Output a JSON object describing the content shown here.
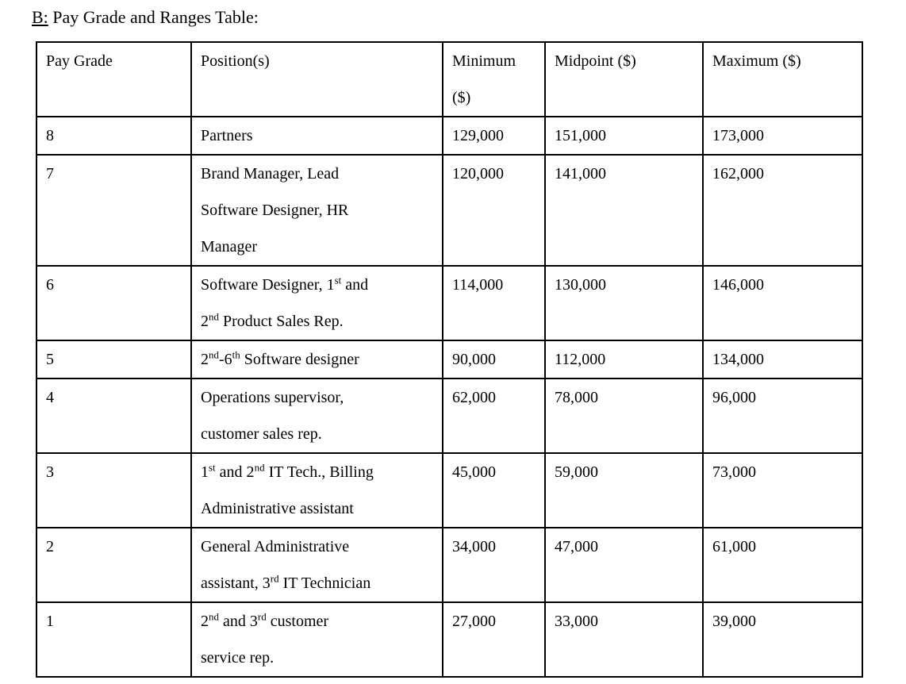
{
  "title": {
    "prefix": "B:",
    "rest": " Pay Grade and Ranges Table:"
  },
  "table": {
    "columns": [
      {
        "key": "grade",
        "label": [
          {
            "t": "Pay Grade"
          }
        ]
      },
      {
        "key": "positions",
        "label": [
          {
            "t": "Position(s)"
          }
        ]
      },
      {
        "key": "minimum",
        "label": [
          {
            "t": "Minimum"
          },
          {
            "b": true
          },
          {
            "t": "($)"
          }
        ]
      },
      {
        "key": "midpoint",
        "label": [
          {
            "t": "Midpoint ($)"
          }
        ]
      },
      {
        "key": "maximum",
        "label": [
          {
            "t": "Maximum ($)"
          }
        ]
      }
    ],
    "rows": [
      {
        "grade": "8",
        "positions": [
          {
            "t": "Partners"
          }
        ],
        "minimum": "129,000",
        "midpoint": "151,000",
        "maximum": "173,000"
      },
      {
        "grade": "7",
        "positions": [
          {
            "t": "Brand Manager, Lead"
          },
          {
            "b": true
          },
          {
            "t": "Software Designer, HR"
          },
          {
            "b": true
          },
          {
            "t": "Manager"
          }
        ],
        "minimum": "120,000",
        "midpoint": "141,000",
        "maximum": "162,000"
      },
      {
        "grade": "6",
        "positions": [
          {
            "t": "Software Designer, 1"
          },
          {
            "s": "st"
          },
          {
            "t": " and"
          },
          {
            "b": true
          },
          {
            "t": "2"
          },
          {
            "s": "nd"
          },
          {
            "t": " Product Sales Rep."
          }
        ],
        "minimum": "114,000",
        "midpoint": "130,000",
        "maximum": "146,000"
      },
      {
        "grade": "5",
        "positions": [
          {
            "t": "2"
          },
          {
            "s": "nd"
          },
          {
            "t": "-6"
          },
          {
            "s": "th"
          },
          {
            "t": " Software designer"
          }
        ],
        "minimum": "90,000",
        "midpoint": "112,000",
        "maximum": "134,000"
      },
      {
        "grade": "4",
        "positions": [
          {
            "t": "Operations supervisor,"
          },
          {
            "b": true
          },
          {
            "t": "customer sales rep."
          }
        ],
        "minimum": "62,000",
        "midpoint": "78,000",
        "maximum": "96,000"
      },
      {
        "grade": "3",
        "positions": [
          {
            "t": "1"
          },
          {
            "s": "st"
          },
          {
            "t": " and 2"
          },
          {
            "s": "nd"
          },
          {
            "t": " IT Tech., Billing"
          },
          {
            "b": true
          },
          {
            "t": "Administrative assistant"
          }
        ],
        "minimum": "45,000",
        "midpoint": "59,000",
        "maximum": "73,000"
      },
      {
        "grade": "2",
        "positions": [
          {
            "t": "General Administrative"
          },
          {
            "b": true
          },
          {
            "t": "assistant, 3"
          },
          {
            "s": "rd"
          },
          {
            "t": " IT Technician"
          }
        ],
        "minimum": "34,000",
        "midpoint": "47,000",
        "maximum": "61,000"
      },
      {
        "grade": "1",
        "positions": [
          {
            "t": "2"
          },
          {
            "s": "nd"
          },
          {
            "t": " and 3"
          },
          {
            "s": "rd"
          },
          {
            "t": " customer"
          },
          {
            "b": true
          },
          {
            "t": "service rep."
          }
        ],
        "minimum": "27,000",
        "midpoint": "33,000",
        "maximum": "39,000"
      }
    ]
  }
}
